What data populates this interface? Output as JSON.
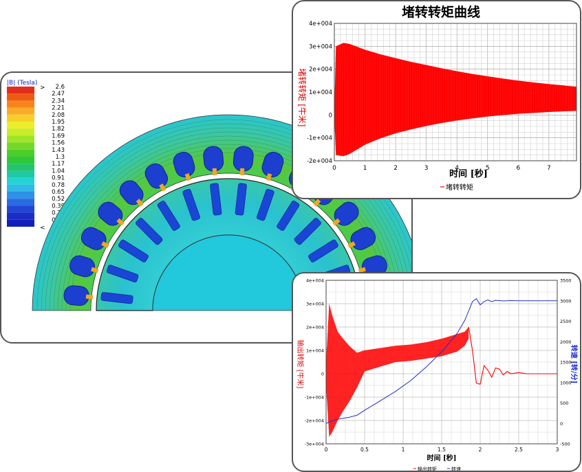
{
  "fem": {
    "legend_title": "|B| (Tesla)",
    "legend_levels": [
      "2.6",
      "2.47",
      "2.34",
      "2.21",
      "2.08",
      "1.95",
      "1.82",
      "1.69",
      "1.56",
      "1.43",
      "1.3",
      "1.17",
      "1.04",
      "0.91",
      "0.78",
      "0.65",
      "0.52",
      "0.39",
      "0.26",
      "0.13",
      "0"
    ],
    "legend_colors": [
      "#e32d1c",
      "#ee5a14",
      "#f7841a",
      "#fbab2a",
      "#f6cf2a",
      "#eded2c",
      "#c8ed2a",
      "#9ee52a",
      "#74d82a",
      "#4ccd2a",
      "#2ec83a",
      "#25c46a",
      "#1fc9a2",
      "#24d3d3",
      "#2fb8e8",
      "#2f91e6",
      "#2a6be2",
      "#2246d4",
      "#1a2ec6",
      "#1020b8"
    ],
    "legend_gt": ">",
    "legend_lt": "<"
  },
  "chart_data": [
    {
      "type": "line",
      "title": "堵转转矩曲线",
      "xlabel": "时间 [秒]",
      "ylabel": "堵转转矩 [牛米]",
      "xlim": [
        0,
        7.9
      ],
      "ylim": [
        -20000,
        40000
      ],
      "x_ticks": [
        "0",
        "1",
        "2",
        "3",
        "4",
        "5",
        "6",
        "7"
      ],
      "y_ticks": [
        "-2e+004",
        "-1e+004",
        "0",
        "1e+004",
        "2e+004",
        "3e+004",
        "4e+004"
      ],
      "grid": true,
      "legend_position": "bottom",
      "series": [
        {
          "name": "堵转转矩",
          "color": "#ff0000",
          "envelope_x": [
            0,
            0.05,
            0.3,
            0.5,
            1,
            1.5,
            2,
            2.5,
            3,
            3.5,
            4,
            4.5,
            5,
            5.5,
            6,
            6.5,
            7,
            7.5,
            7.9
          ],
          "envelope_upper": [
            0,
            30000,
            31500,
            31000,
            28500,
            26500,
            24800,
            23200,
            21800,
            20400,
            19100,
            17900,
            16900,
            15900,
            15000,
            14200,
            13500,
            12900,
            12300
          ],
          "envelope_lower": [
            0,
            -17500,
            -18000,
            -17000,
            -13000,
            -10200,
            -8000,
            -6300,
            -4800,
            -3500,
            -2400,
            -1500,
            -700,
            -50,
            500,
            900,
            1300,
            1600,
            1800
          ]
        }
      ]
    },
    {
      "type": "line",
      "xlabel": "时间 [秒]",
      "ylabel": "输出转矩 [牛米]",
      "y2label": "转速 [转/分]",
      "xlim": [
        0,
        3
      ],
      "ylim": [
        -30000,
        40000
      ],
      "y2lim": [
        -500,
        3500
      ],
      "x_ticks": [
        "0",
        "0.5",
        "1",
        "1.5",
        "2",
        "2.5",
        "3"
      ],
      "y_ticks": [
        "-3e+004",
        "-2e+004",
        "-1e+004",
        "0",
        "1e+004",
        "2e+004",
        "3e+004",
        "4e+004"
      ],
      "y2_ticks": [
        "-500",
        "0",
        "500",
        "1000",
        "1500",
        "2000",
        "2500",
        "3000",
        "3500"
      ],
      "grid": true,
      "legend_position": "bottom",
      "series": [
        {
          "name": "输出转矩",
          "axis": "left",
          "color": "#ff0000",
          "envelope_x": [
            0,
            0.04,
            0.08,
            0.15,
            0.22,
            0.3,
            0.4,
            0.5,
            0.7,
            0.9,
            1.1,
            1.3,
            1.5,
            1.7,
            1.8,
            1.85
          ],
          "envelope_upper": [
            5000,
            30000,
            25000,
            18000,
            15000,
            12000,
            9000,
            10000,
            11000,
            12000,
            12500,
            13500,
            15000,
            17000,
            18000,
            20000
          ],
          "envelope_lower": [
            -5000,
            -27000,
            -25000,
            -20000,
            -16000,
            -12000,
            -6000,
            1000,
            3000,
            5000,
            5500,
            6500,
            7500,
            9500,
            12000,
            15000
          ],
          "tail_x": [
            1.85,
            1.9,
            1.95,
            2.0,
            2.05,
            2.1,
            2.15,
            2.2,
            2.25,
            2.3,
            2.35,
            2.4,
            2.5,
            2.6,
            2.7,
            2.8,
            2.9,
            3.0
          ],
          "tail_y": [
            20000,
            10000,
            -4000,
            -4500,
            3500,
            1500,
            -1500,
            2500,
            2000,
            -500,
            1000,
            0,
            500,
            0,
            0,
            0,
            0,
            0
          ]
        },
        {
          "name": "转速",
          "axis": "right",
          "color": "#1e2dd2",
          "x": [
            0,
            0.1,
            0.2,
            0.3,
            0.4,
            0.5,
            0.7,
            0.9,
            1.1,
            1.3,
            1.5,
            1.7,
            1.8,
            1.9,
            1.95,
            2.0,
            2.05,
            2.1,
            2.15,
            2.2,
            2.3,
            2.4,
            2.5,
            3.0
          ],
          "y": [
            0,
            80,
            120,
            150,
            200,
            320,
            550,
            780,
            1050,
            1380,
            1750,
            2200,
            2520,
            2980,
            3050,
            2900,
            2980,
            3020,
            2980,
            3010,
            2995,
            3005,
            3000,
            3000
          ]
        }
      ]
    }
  ]
}
